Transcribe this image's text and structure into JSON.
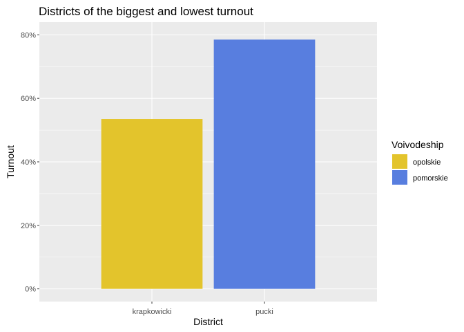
{
  "chart_data": {
    "type": "bar",
    "title": "Districts of the biggest and lowest turnout",
    "xlabel": "District",
    "ylabel": "Turnout",
    "categories": [
      "krapkowicki",
      "pucki"
    ],
    "values": [
      0.535,
      0.785
    ],
    "bar_groups": [
      "opolskie",
      "pomorskie"
    ],
    "ylim": [
      -0.04,
      0.84
    ],
    "yticks": [
      0,
      0.2,
      0.4,
      0.6,
      0.8
    ],
    "ytick_labels": [
      "0%",
      "20%",
      "40%",
      "60%",
      "80%"
    ],
    "grid": true,
    "legend": {
      "title": "Voivodeship",
      "placement": "right",
      "entries": [
        {
          "name": "opolskie",
          "color": "#E3C42C"
        },
        {
          "name": "pomorskie",
          "color": "#587EDF"
        }
      ]
    }
  },
  "colors": {
    "panel_background": "#EBEBEB",
    "grid": "#FFFFFF"
  }
}
